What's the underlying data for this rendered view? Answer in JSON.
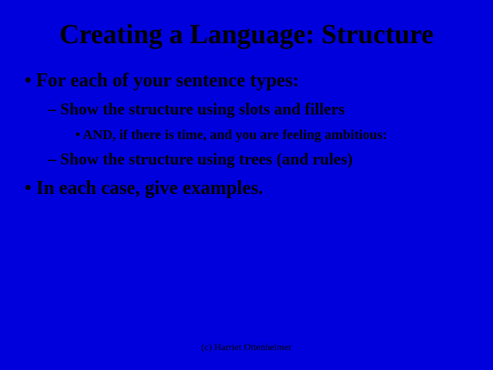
{
  "slide": {
    "title": "Creating a Language: Structure",
    "bullets": {
      "b1": "For each of your sentence types:",
      "b1_1": "Show the structure using slots and fillers",
      "b1_1_1": "AND, if there is time, and you are feeling ambitious:",
      "b1_2": "Show the structure using trees (and rules)",
      "b2": "In each case, give examples."
    },
    "footer": "(c) Harriet Ottenheimer"
  },
  "style": {
    "background_color": "#0000dd",
    "text_color": "#000000",
    "title_fontsize": 40,
    "level1_fontsize": 28,
    "level2_fontsize": 24,
    "level3_fontsize": 20,
    "footer_fontsize": 14,
    "font_family": "Times New Roman"
  }
}
